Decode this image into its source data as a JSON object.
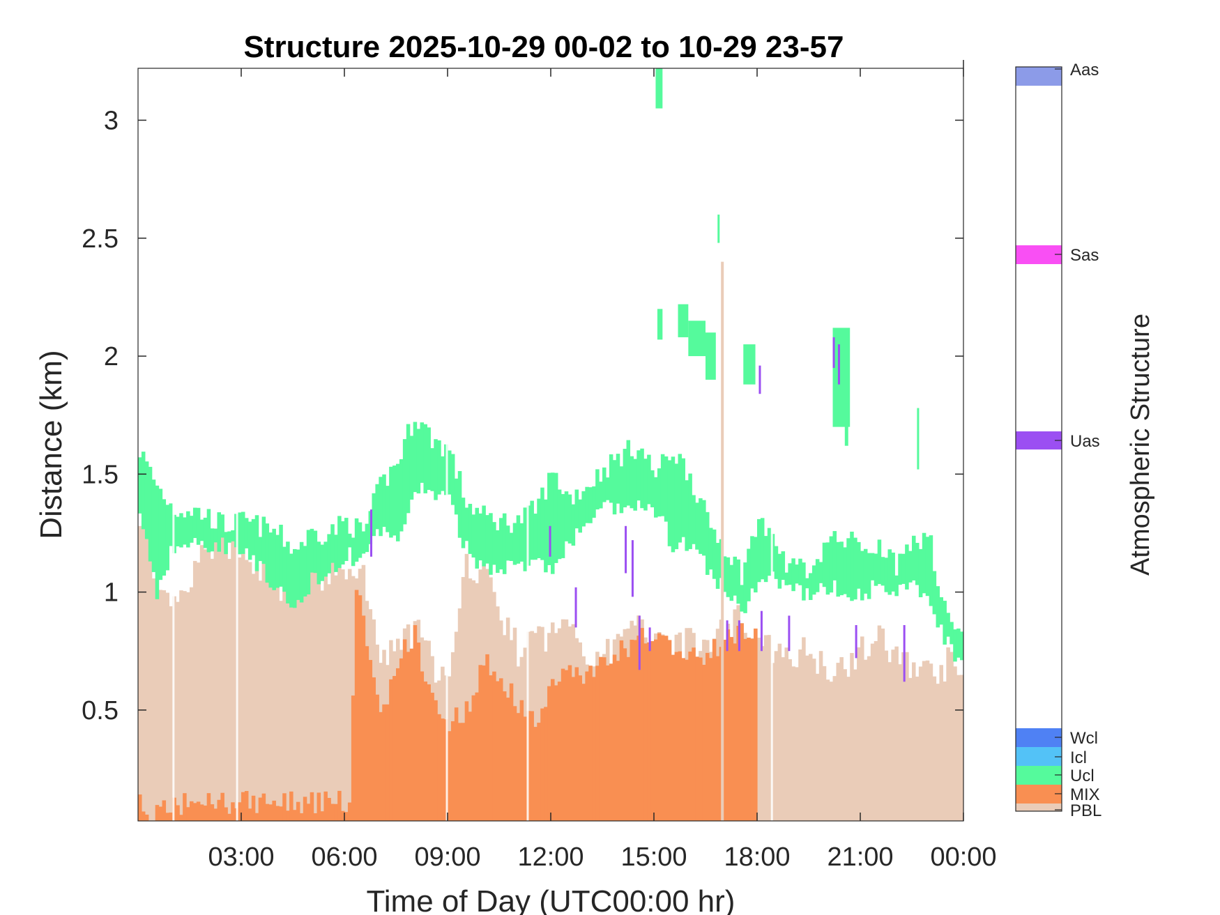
{
  "chart_data": {
    "type": "heatmap",
    "title": "Structure 2025-10-29 00-02 to 10-29 23-57",
    "xlabel": "Time of Day (UTC00:00 hr)",
    "ylabel": "Distance (km)",
    "colorbar_label": "Atmospheric Structure",
    "xlim": [
      0.0,
      24.0
    ],
    "ylim": [
      0.03,
      3.22
    ],
    "x_ticks": [
      3,
      6,
      9,
      12,
      15,
      18,
      21,
      24
    ],
    "x_tick_labels": [
      "03:00",
      "06:00",
      "09:00",
      "12:00",
      "15:00",
      "18:00",
      "21:00",
      "00:00"
    ],
    "y_ticks": [
      0.5,
      1,
      1.5,
      2,
      2.5,
      3
    ],
    "y_tick_labels": [
      "0.5",
      "1",
      "1.5",
      "2",
      "2.5",
      "3"
    ],
    "categories": [
      {
        "label": "Aas",
        "color": "#8c9be8"
      },
      {
        "label": "Sas",
        "color": "#f94ff4"
      },
      {
        "label": "Uas",
        "color": "#9b4ff2"
      },
      {
        "label": "Wcl",
        "color": "#4f81f4"
      },
      {
        "label": "Icl",
        "color": "#53c2f7"
      },
      {
        "label": "Ucl",
        "color": "#55fa9c"
      },
      {
        "label": "MIX",
        "color": "#f98f52"
      },
      {
        "label": "PBL",
        "color": "#eaccb8"
      }
    ],
    "colors": {
      "pbl": "#eaccb8",
      "mix": "#f98f52",
      "ucl": "#55fa9c",
      "uas": "#9b4ff2"
    },
    "mix_top_km": {
      "t": [
        0,
        0.15,
        1.4,
        6.1,
        6.3,
        6.8,
        7.1,
        7.6,
        8.0,
        8.5,
        9.0,
        9.5,
        10.0,
        10.5,
        11.0,
        11.5,
        12.0,
        12.5,
        13.0,
        13.5,
        14.0,
        14.5,
        15.0,
        15.5,
        16.0,
        16.5,
        17.0,
        17.5,
        17.9,
        18.0
      ],
      "km": [
        0.1,
        0.05,
        0.11,
        0.11,
        1.05,
        0.6,
        0.5,
        0.75,
        0.82,
        0.55,
        0.45,
        0.5,
        0.7,
        0.65,
        0.52,
        0.45,
        0.6,
        0.68,
        0.65,
        0.7,
        0.75,
        0.8,
        0.82,
        0.78,
        0.75,
        0.72,
        0.8,
        0.85,
        0.82,
        0.0
      ]
    },
    "pbl_top_km": {
      "t": [
        0,
        0.5,
        1.2,
        2.0,
        3.0,
        4.0,
        5.0,
        6.0,
        6.5,
        7.0,
        7.5,
        8.0,
        8.5,
        9.0,
        9.5,
        10.0,
        10.5,
        11.0,
        11.5,
        12.0,
        12.5,
        13.0,
        13.5,
        14.0,
        14.5,
        15.0,
        15.5,
        16.0,
        16.5,
        17.0,
        17.5,
        18.0,
        18.5,
        19.0,
        19.5,
        20.0,
        20.5,
        21.0,
        21.5,
        22.0,
        22.5,
        23.0,
        23.5,
        24.0
      ],
      "km": [
        1.35,
        0.95,
        0.95,
        1.2,
        1.2,
        1.0,
        1.05,
        1.1,
        1.05,
        0.72,
        0.75,
        0.85,
        0.7,
        0.6,
        1.1,
        1.1,
        0.9,
        0.75,
        0.8,
        0.82,
        0.88,
        0.75,
        0.72,
        0.8,
        0.85,
        0.85,
        0.8,
        0.78,
        0.78,
        0.85,
        0.9,
        0.8,
        0.72,
        0.75,
        0.75,
        0.68,
        0.7,
        0.75,
        0.8,
        0.72,
        0.7,
        0.65,
        0.7,
        0.62
      ]
    },
    "ucl_band_km": {
      "t": [
        0,
        0.5,
        1.0,
        1.5,
        2.0,
        2.5,
        3.0,
        3.5,
        4.0,
        4.5,
        5.0,
        5.5,
        6.0,
        6.5,
        7.0,
        7.5,
        8.0,
        8.5,
        9.0,
        9.5,
        10.0,
        10.5,
        11.0,
        11.5,
        12.0,
        12.5,
        13.0,
        13.5,
        14.0,
        14.5,
        15.0,
        15.5,
        16.0,
        16.5,
        17.0,
        17.5,
        18.0,
        18.5,
        19.0,
        19.5,
        20.0,
        20.5,
        21.0,
        21.5,
        22.0,
        22.5,
        23.0,
        23.5,
        24.0
      ],
      "bottom": [
        1.35,
        1.0,
        1.2,
        1.2,
        1.2,
        1.2,
        1.2,
        1.1,
        1.0,
        0.92,
        1.05,
        1.1,
        1.15,
        1.15,
        1.25,
        1.2,
        1.45,
        1.42,
        1.38,
        1.18,
        1.1,
        1.12,
        1.1,
        1.12,
        1.1,
        1.2,
        1.3,
        1.35,
        1.35,
        1.35,
        1.35,
        1.2,
        1.2,
        1.1,
        1.0,
        0.92,
        1.05,
        1.05,
        1.0,
        1.0,
        1.02,
        1.0,
        1.0,
        1.02,
        0.98,
        1.05,
        0.95,
        0.78,
        0.68
      ],
      "top": [
        1.6,
        1.45,
        1.35,
        1.35,
        1.32,
        1.28,
        1.3,
        1.28,
        1.25,
        1.18,
        1.25,
        1.25,
        1.3,
        1.25,
        1.45,
        1.55,
        1.75,
        1.65,
        1.6,
        1.38,
        1.32,
        1.3,
        1.3,
        1.35,
        1.5,
        1.4,
        1.45,
        1.52,
        1.58,
        1.62,
        1.5,
        1.6,
        1.5,
        1.3,
        1.2,
        1.08,
        1.3,
        1.18,
        1.1,
        1.1,
        1.22,
        1.22,
        1.2,
        1.2,
        1.12,
        1.25,
        1.2,
        0.88,
        0.82
      ]
    },
    "ucl_patches_km": [
      {
        "t0": 15.05,
        "t1": 15.25,
        "bottom": 3.05,
        "top": 3.22
      },
      {
        "t0": 15.1,
        "t1": 15.25,
        "bottom": 2.07,
        "top": 2.2
      },
      {
        "t0": 15.7,
        "t1": 16.0,
        "bottom": 2.08,
        "top": 2.22
      },
      {
        "t0": 16.0,
        "t1": 16.5,
        "bottom": 2.0,
        "top": 2.15
      },
      {
        "t0": 16.5,
        "t1": 16.8,
        "bottom": 1.9,
        "top": 2.1
      },
      {
        "t0": 16.85,
        "t1": 16.9,
        "bottom": 2.48,
        "top": 2.6
      },
      {
        "t0": 17.6,
        "t1": 17.95,
        "bottom": 1.88,
        "top": 2.05
      },
      {
        "t0": 20.2,
        "t1": 20.7,
        "bottom": 1.7,
        "top": 2.12
      },
      {
        "t0": 20.55,
        "t1": 20.65,
        "bottom": 1.62,
        "top": 1.8
      },
      {
        "t0": 22.65,
        "t1": 22.7,
        "bottom": 1.52,
        "top": 1.78
      }
    ],
    "uas_marks_km": [
      {
        "t": 6.75,
        "bottom": 1.15,
        "top": 1.35
      },
      {
        "t": 11.95,
        "bottom": 1.15,
        "top": 1.28
      },
      {
        "t": 12.7,
        "bottom": 0.85,
        "top": 1.02
      },
      {
        "t": 14.15,
        "bottom": 1.08,
        "top": 1.28
      },
      {
        "t": 14.35,
        "bottom": 0.98,
        "top": 1.22
      },
      {
        "t": 14.55,
        "bottom": 0.67,
        "top": 0.9
      },
      {
        "t": 14.85,
        "bottom": 0.75,
        "top": 0.85
      },
      {
        "t": 17.1,
        "bottom": 0.75,
        "top": 0.88
      },
      {
        "t": 17.45,
        "bottom": 0.75,
        "top": 0.88
      },
      {
        "t": 18.05,
        "bottom": 1.84,
        "top": 1.96
      },
      {
        "t": 18.1,
        "bottom": 0.75,
        "top": 0.92
      },
      {
        "t": 18.9,
        "bottom": 0.75,
        "top": 0.9
      },
      {
        "t": 20.2,
        "bottom": 1.95,
        "top": 2.08
      },
      {
        "t": 20.35,
        "bottom": 1.88,
        "top": 2.05
      },
      {
        "t": 20.85,
        "bottom": 0.72,
        "top": 0.86
      },
      {
        "t": 22.25,
        "bottom": 0.62,
        "top": 0.86
      }
    ],
    "pbl_spike_km": {
      "t": 16.95,
      "top": 2.4
    }
  }
}
